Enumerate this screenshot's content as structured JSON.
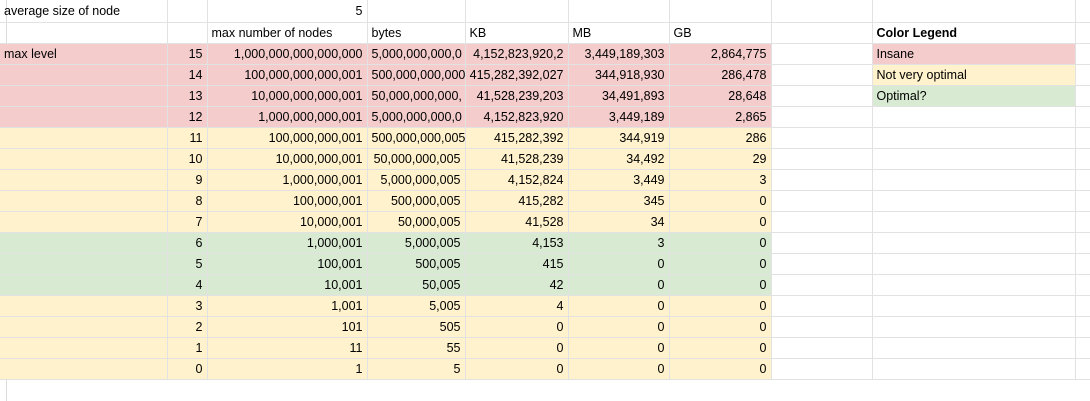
{
  "top": {
    "avg_label": "average size of node",
    "avg_value": "5"
  },
  "header": {
    "col_max_nodes": "max number of nodes",
    "col_bytes": "bytes",
    "col_kb": "KB",
    "col_mb": "MB",
    "col_gb": "GB"
  },
  "max_level_label": "max level",
  "legend": {
    "title": "Color Legend",
    "items": [
      {
        "label": "Insane",
        "color": "#f4cccc"
      },
      {
        "label": "Not very optimal",
        "color": "#fff2cc"
      },
      {
        "label": "Optimal?",
        "color": "#d9ead3"
      }
    ]
  },
  "rows": [
    {
      "level": "15",
      "nodes": "1,000,000,000,000,000",
      "bytes": "5,000,000,000,0",
      "kb": "4,152,823,920,2",
      "mb": "3,449,189,303",
      "gb": "2,864,775",
      "color": "red"
    },
    {
      "level": "14",
      "nodes": "100,000,000,000,001",
      "bytes": "500,000,000,000",
      "kb": "415,282,392,027",
      "mb": "344,918,930",
      "gb": "286,478",
      "color": "red"
    },
    {
      "level": "13",
      "nodes": "10,000,000,000,001",
      "bytes": "50,000,000,000,",
      "kb": "41,528,239,203",
      "mb": "34,491,893",
      "gb": "28,648",
      "color": "red"
    },
    {
      "level": "12",
      "nodes": "1,000,000,000,001",
      "bytes": "5,000,000,000,0",
      "kb": "4,152,823,920",
      "mb": "3,449,189",
      "gb": "2,865",
      "color": "red"
    },
    {
      "level": "11",
      "nodes": "100,000,000,001",
      "bytes": "500,000,000,005",
      "kb": "415,282,392",
      "mb": "344,919",
      "gb": "286",
      "color": "yel"
    },
    {
      "level": "10",
      "nodes": "10,000,000,001",
      "bytes": "50,000,000,005",
      "kb": "41,528,239",
      "mb": "34,492",
      "gb": "29",
      "color": "yel"
    },
    {
      "level": "9",
      "nodes": "1,000,000,001",
      "bytes": "5,000,000,005",
      "kb": "4,152,824",
      "mb": "3,449",
      "gb": "3",
      "color": "yel"
    },
    {
      "level": "8",
      "nodes": "100,000,001",
      "bytes": "500,000,005",
      "kb": "415,282",
      "mb": "345",
      "gb": "0",
      "color": "yel"
    },
    {
      "level": "7",
      "nodes": "10,000,001",
      "bytes": "50,000,005",
      "kb": "41,528",
      "mb": "34",
      "gb": "0",
      "color": "yel"
    },
    {
      "level": "6",
      "nodes": "1,000,001",
      "bytes": "5,000,005",
      "kb": "4,153",
      "mb": "3",
      "gb": "0",
      "color": "grn"
    },
    {
      "level": "5",
      "nodes": "100,001",
      "bytes": "500,005",
      "kb": "415",
      "mb": "0",
      "gb": "0",
      "color": "grn"
    },
    {
      "level": "4",
      "nodes": "10,001",
      "bytes": "50,005",
      "kb": "42",
      "mb": "0",
      "gb": "0",
      "color": "grn"
    },
    {
      "level": "3",
      "nodes": "1,001",
      "bytes": "5,005",
      "kb": "4",
      "mb": "0",
      "gb": "0",
      "color": "yel"
    },
    {
      "level": "2",
      "nodes": "101",
      "bytes": "505",
      "kb": "0",
      "mb": "0",
      "gb": "0",
      "color": "yel"
    },
    {
      "level": "1",
      "nodes": "11",
      "bytes": "55",
      "kb": "0",
      "mb": "0",
      "gb": "0",
      "color": "yel"
    },
    {
      "level": "0",
      "nodes": "1",
      "bytes": "5",
      "kb": "0",
      "mb": "0",
      "gb": "0",
      "color": "yel"
    }
  ]
}
